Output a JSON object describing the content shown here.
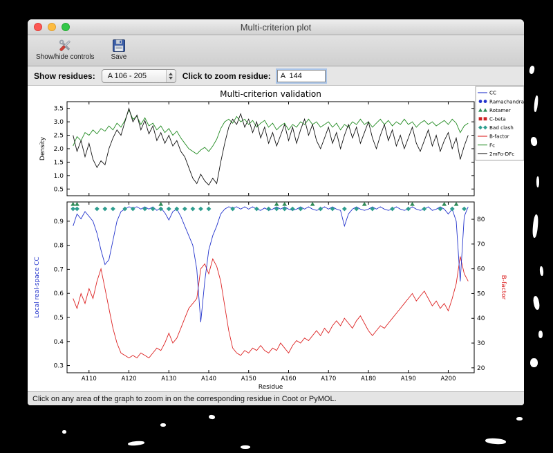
{
  "window": {
    "title": "Multi-criterion plot"
  },
  "toolbar": {
    "show_hide_label": "Show/hide controls",
    "save_label": "Save"
  },
  "controls": {
    "show_residues_label": "Show residues:",
    "residue_range_value": "A 106 - 205",
    "zoom_residue_label": "Click to zoom residue:",
    "zoom_residue_value": "A  144"
  },
  "status": {
    "text": "Click on any area of the graph to zoom in on the corresponding residue in Coot or PyMOL."
  },
  "chart_data": {
    "type": "line",
    "title": "Multi-criterion validation",
    "xlabel": "Residue",
    "residue_start": 106,
    "xlim": [
      104.5,
      206.5
    ],
    "x_ticks": [
      {
        "residue": 110,
        "label": "A110"
      },
      {
        "residue": 120,
        "label": "A120"
      },
      {
        "residue": 130,
        "label": "A130"
      },
      {
        "residue": 140,
        "label": "A140"
      },
      {
        "residue": 150,
        "label": "A150"
      },
      {
        "residue": 160,
        "label": "A160"
      },
      {
        "residue": 170,
        "label": "A170"
      },
      {
        "residue": 180,
        "label": "A180"
      },
      {
        "residue": 190,
        "label": "A190"
      },
      {
        "residue": 200,
        "label": "A200"
      }
    ],
    "top_plot": {
      "ylabel": "Density",
      "ylim": [
        0.25,
        3.75
      ],
      "yticks": [
        0.5,
        1.0,
        1.5,
        2.0,
        2.5,
        3.0,
        3.5
      ],
      "series": [
        {
          "name": "Fc",
          "color": "#228b22",
          "values": [
            2.1,
            2.45,
            2.3,
            2.6,
            2.5,
            2.7,
            2.55,
            2.75,
            2.65,
            2.85,
            2.7,
            2.95,
            2.8,
            3.05,
            3.45,
            3.1,
            3.2,
            2.9,
            3.15,
            2.85,
            2.95,
            2.7,
            2.85,
            2.6,
            2.75,
            2.5,
            2.65,
            2.4,
            2.2,
            2.0,
            1.9,
            1.8,
            1.95,
            2.05,
            1.9,
            2.1,
            2.35,
            2.75,
            3.0,
            3.1,
            2.95,
            3.2,
            3.0,
            3.1,
            2.9,
            3.05,
            2.8,
            2.95,
            3.05,
            2.8,
            2.95,
            2.7,
            2.85,
            2.95,
            2.7,
            2.9,
            2.8,
            3.0,
            2.9,
            3.1,
            2.9,
            3.0,
            2.8,
            2.9,
            3.0,
            2.8,
            2.95,
            2.7,
            2.9,
            2.8,
            3.0,
            2.9,
            3.1,
            2.9,
            3.0,
            2.8,
            2.95,
            3.1,
            2.9,
            3.05,
            2.85,
            3.0,
            2.9,
            3.1,
            2.9,
            3.0,
            2.8,
            2.95,
            3.05,
            2.9,
            3.0,
            2.85,
            2.95,
            3.05,
            2.9,
            3.1,
            2.95,
            2.6,
            2.85,
            2.95
          ]
        },
        {
          "name": "2mFo-DFc",
          "color": "#111111",
          "values": [
            2.5,
            1.9,
            2.3,
            1.7,
            2.2,
            1.6,
            1.3,
            1.55,
            1.4,
            2.0,
            2.4,
            2.7,
            2.5,
            3.0,
            3.5,
            3.0,
            3.25,
            2.7,
            3.05,
            2.55,
            2.85,
            2.3,
            2.6,
            2.2,
            2.5,
            2.1,
            2.3,
            1.9,
            1.7,
            1.3,
            0.9,
            0.7,
            1.05,
            0.8,
            0.65,
            0.9,
            0.7,
            1.5,
            2.2,
            2.8,
            3.1,
            2.9,
            3.3,
            2.8,
            3.1,
            2.6,
            3.0,
            2.4,
            2.8,
            2.2,
            2.6,
            2.1,
            2.5,
            2.9,
            2.3,
            2.8,
            2.2,
            2.7,
            3.1,
            2.5,
            2.9,
            2.3,
            2.0,
            2.4,
            2.8,
            2.2,
            2.6,
            2.0,
            2.5,
            2.9,
            2.4,
            2.8,
            2.2,
            2.6,
            3.0,
            2.4,
            2.0,
            2.5,
            2.9,
            2.3,
            2.7,
            2.1,
            2.5,
            2.0,
            2.4,
            2.8,
            2.2,
            1.9,
            2.3,
            2.7,
            2.1,
            2.5,
            1.9,
            2.3,
            2.6,
            2.0,
            2.4,
            1.6,
            2.1,
            2.5
          ]
        }
      ]
    },
    "bottom_plot": {
      "left_ylabel": "Local real-space CC",
      "left_color": "#2233cc",
      "left_ylim": [
        0.27,
        0.98
      ],
      "left_yticks": [
        0.3,
        0.4,
        0.5,
        0.6,
        0.7,
        0.8,
        0.9
      ],
      "right_ylabel": "B-factor",
      "right_color": "#dd2222",
      "right_ylim": [
        18,
        87
      ],
      "right_yticks": [
        20,
        30,
        40,
        50,
        60,
        70,
        80
      ],
      "cc": {
        "name": "CC",
        "color": "#2233cc",
        "values": [
          0.88,
          0.93,
          0.91,
          0.94,
          0.92,
          0.9,
          0.85,
          0.78,
          0.72,
          0.74,
          0.82,
          0.9,
          0.94,
          0.95,
          0.96,
          0.955,
          0.96,
          0.95,
          0.96,
          0.95,
          0.96,
          0.945,
          0.955,
          0.935,
          0.905,
          0.94,
          0.95,
          0.92,
          0.88,
          0.84,
          0.8,
          0.7,
          0.48,
          0.65,
          0.78,
          0.84,
          0.88,
          0.93,
          0.95,
          0.96,
          0.955,
          0.96,
          0.95,
          0.96,
          0.95,
          0.96,
          0.95,
          0.945,
          0.955,
          0.945,
          0.95,
          0.96,
          0.95,
          0.96,
          0.95,
          0.945,
          0.95,
          0.96,
          0.95,
          0.96,
          0.95,
          0.945,
          0.95,
          0.96,
          0.95,
          0.96,
          0.95,
          0.945,
          0.88,
          0.93,
          0.95,
          0.96,
          0.95,
          0.945,
          0.95,
          0.96,
          0.95,
          0.96,
          0.95,
          0.945,
          0.95,
          0.96,
          0.95,
          0.945,
          0.95,
          0.96,
          0.95,
          0.945,
          0.95,
          0.96,
          0.945,
          0.95,
          0.96,
          0.95,
          0.93,
          0.95,
          0.9,
          0.65,
          0.92,
          0.96
        ]
      },
      "bfactor": {
        "name": "B-factor",
        "color": "#dd2222",
        "values": [
          48,
          44,
          50,
          46,
          52,
          48,
          55,
          60,
          52,
          44,
          36,
          30,
          26,
          25,
          24,
          25,
          24,
          26,
          25,
          24,
          26,
          28,
          27,
          30,
          34,
          30,
          32,
          36,
          40,
          44,
          46,
          48,
          60,
          62,
          58,
          64,
          61,
          55,
          45,
          35,
          28,
          26,
          25,
          27,
          26,
          28,
          27,
          29,
          27,
          26,
          28,
          27,
          30,
          28,
          26,
          29,
          31,
          30,
          32,
          31,
          33,
          35,
          33,
          36,
          34,
          37,
          39,
          37,
          40,
          38,
          36,
          39,
          41,
          38,
          35,
          33,
          35,
          37,
          36,
          38,
          40,
          42,
          44,
          46,
          48,
          50,
          47,
          49,
          51,
          48,
          45,
          47,
          44,
          46,
          43,
          48,
          54,
          65,
          58,
          55
        ]
      },
      "markers": {
        "rotamer": {
          "color": "#2e8b57",
          "residues": [
            106,
            107,
            128,
            157,
            159,
            166,
            179,
            191,
            199,
            202
          ]
        },
        "bad_clash": {
          "color": "#2e9e8f",
          "residues": [
            106,
            107,
            112,
            114,
            116,
            119,
            121,
            124,
            126,
            128,
            130,
            132,
            134,
            136,
            138,
            140,
            146,
            152,
            155,
            157,
            159,
            161,
            163,
            168,
            171,
            174,
            177,
            181,
            186,
            190,
            194,
            198,
            201,
            204
          ]
        },
        "ramachandran": {
          "color": "#2233cc",
          "residues": []
        },
        "c_beta": {
          "color": "#cc2222",
          "residues": []
        }
      }
    },
    "legend": [
      {
        "label": "CC",
        "glyph": "line",
        "color": "#2233cc"
      },
      {
        "label": "Ramachandran",
        "glyph": "circles",
        "color": "#2233cc"
      },
      {
        "label": "Rotamer",
        "glyph": "triangles",
        "color": "#2e8b57"
      },
      {
        "label": "C-beta",
        "glyph": "squares",
        "color": "#cc2222"
      },
      {
        "label": "Bad clash",
        "glyph": "diamonds",
        "color": "#2e9e8f"
      },
      {
        "label": "B-factor",
        "glyph": "line",
        "color": "#dd2222"
      },
      {
        "label": "Fc",
        "glyph": "line",
        "color": "#228b22"
      },
      {
        "label": "2mFo-DFc",
        "glyph": "line",
        "color": "#111111"
      }
    ]
  }
}
